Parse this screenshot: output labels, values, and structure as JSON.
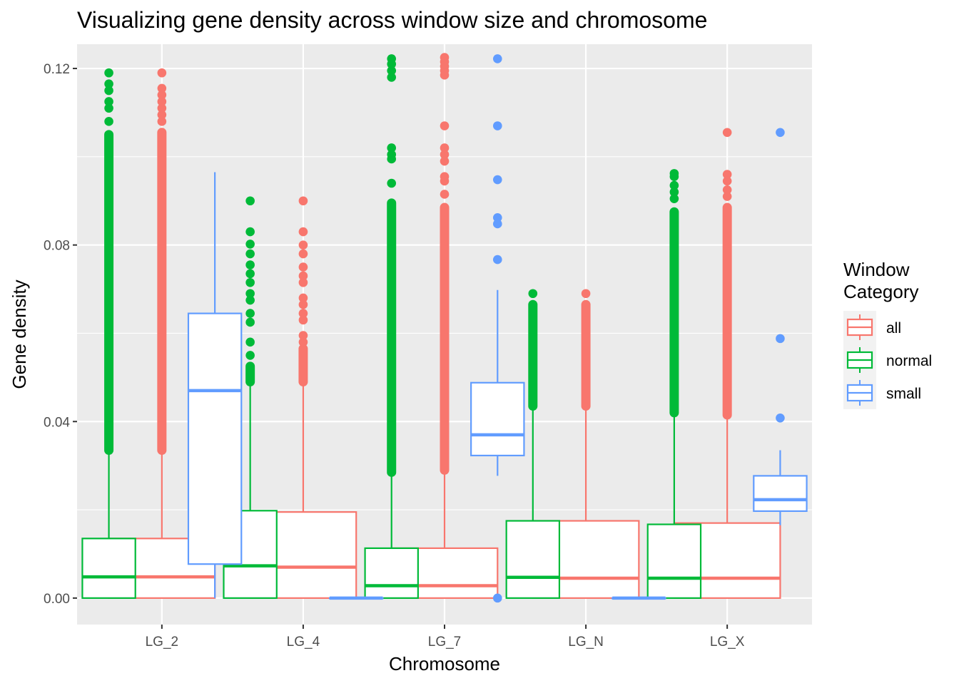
{
  "chart_data": {
    "type": "boxplot",
    "title": "Visualizing gene density across window size and chromosome",
    "xlabel": "Chromosome",
    "ylabel": "Gene density",
    "categories": [
      "LG_2",
      "LG_4",
      "LG_7",
      "LG_N",
      "LG_X"
    ],
    "ylim": [
      -0.006,
      0.1255
    ],
    "y_ticks": [
      {
        "value": 0.0,
        "label": "0.00"
      },
      {
        "value": 0.04,
        "label": "0.04"
      },
      {
        "value": 0.08,
        "label": "0.08"
      },
      {
        "value": 0.12,
        "label": "0.12"
      }
    ],
    "y_minor_ticks": [
      0.02,
      0.06,
      0.1
    ],
    "grid": true,
    "legend": {
      "title": "Window\nCategory",
      "title_lines": [
        "Window",
        "Category"
      ],
      "placement": "right",
      "entries": [
        {
          "name": "all",
          "color": "#F8766D"
        },
        {
          "name": "normal",
          "color": "#00BA38"
        },
        {
          "name": "small",
          "color": "#619CFF"
        }
      ]
    },
    "colors": {
      "all": "#F8766D",
      "normal": "#00BA38",
      "small": "#619CFF",
      "panel": "#EBEBEB",
      "grid": "#FFFFFF"
    },
    "series": [
      {
        "name": "all",
        "color": "#F8766D",
        "boxes": [
          {
            "category": "LG_2",
            "min": 0.0,
            "q1": 0.0,
            "median": 0.0048,
            "q3": 0.0135,
            "max": 0.0338,
            "outliers_range": [
              0.0335,
              0.1055
            ],
            "outliers": [
              0.108,
              0.1095,
              0.111,
              0.1125,
              0.114,
              0.1155,
              0.119
            ]
          },
          {
            "category": "LG_4",
            "min": 0.0,
            "q1": 0.0,
            "median": 0.007,
            "q3": 0.0195,
            "max": 0.0488,
            "outliers_range": [
              0.049,
              0.0565
            ],
            "outliers": [
              0.058,
              0.0595,
              0.063,
              0.0645,
              0.0665,
              0.068,
              0.0715,
              0.073,
              0.075,
              0.078,
              0.08,
              0.083,
              0.09
            ]
          },
          {
            "category": "LG_7",
            "min": 0.0,
            "q1": 0.0,
            "median": 0.0028,
            "q3": 0.0113,
            "max": 0.0285,
            "outliers_range": [
              0.029,
              0.0885
            ],
            "outliers": [
              0.0915,
              0.0945,
              0.0955,
              0.099,
              0.1005,
              0.102,
              0.107,
              0.1185,
              0.1195,
              0.1205,
              0.1215,
              0.1225
            ]
          },
          {
            "category": "LG_N",
            "min": 0.0,
            "q1": 0.0,
            "median": 0.0045,
            "q3": 0.0175,
            "max": 0.0435,
            "outliers_range": [
              0.0435,
              0.0665
            ],
            "outliers": [
              0.069
            ]
          },
          {
            "category": "LG_X",
            "min": 0.0,
            "q1": 0.0,
            "median": 0.0045,
            "q3": 0.017,
            "max": 0.0415,
            "outliers_range": [
              0.0415,
              0.0885
            ],
            "outliers": [
              0.091,
              0.0925,
              0.0945,
              0.096,
              0.1055
            ]
          }
        ]
      },
      {
        "name": "normal",
        "color": "#00BA38",
        "boxes": [
          {
            "category": "LG_2",
            "min": 0.0,
            "q1": 0.0,
            "median": 0.0048,
            "q3": 0.0135,
            "max": 0.0335,
            "outliers_range": [
              0.0335,
              0.105
            ],
            "outliers": [
              0.108,
              0.111,
              0.1125,
              0.115,
              0.1165,
              0.119
            ]
          },
          {
            "category": "LG_4",
            "min": 0.0,
            "q1": 0.0,
            "median": 0.0073,
            "q3": 0.0198,
            "max": 0.049,
            "outliers_range": [
              0.049,
              0.0525
            ],
            "outliers": [
              0.055,
              0.058,
              0.0625,
              0.0645,
              0.0675,
              0.069,
              0.0715,
              0.0735,
              0.0755,
              0.078,
              0.0802,
              0.083,
              0.09
            ]
          },
          {
            "category": "LG_7",
            "min": 0.0,
            "q1": 0.0,
            "median": 0.0028,
            "q3": 0.0113,
            "max": 0.0285,
            "outliers_range": [
              0.0285,
              0.0895
            ],
            "outliers": [
              0.094,
              0.0995,
              0.1005,
              0.102,
              0.118,
              0.1195,
              0.121,
              0.1222
            ]
          },
          {
            "category": "LG_N",
            "min": 0.0,
            "q1": 0.0,
            "median": 0.0047,
            "q3": 0.0175,
            "max": 0.0435,
            "outliers_range": [
              0.0435,
              0.0665
            ],
            "outliers": [
              0.069
            ]
          },
          {
            "category": "LG_X",
            "min": 0.0,
            "q1": 0.0,
            "median": 0.0045,
            "q3": 0.0167,
            "max": 0.042,
            "outliers_range": [
              0.042,
              0.0875
            ],
            "outliers": [
              0.0905,
              0.092,
              0.0935,
              0.0955,
              0.0962
            ]
          }
        ]
      },
      {
        "name": "small",
        "color": "#619CFF",
        "boxes": [
          {
            "category": "LG_2",
            "min": 0.0,
            "q1": 0.0077,
            "median": 0.047,
            "q3": 0.0645,
            "max": 0.0965,
            "outliers": []
          },
          {
            "category": "LG_4",
            "min": 0.0,
            "q1": 0.0,
            "median": 0.0,
            "q3": 0.0,
            "max": 0.0,
            "outliers": []
          },
          {
            "category": "LG_7",
            "min": 0.0277,
            "q1": 0.0323,
            "median": 0.037,
            "q3": 0.0488,
            "max": 0.0698,
            "outliers": [
              0.0,
              0.0767,
              0.0848,
              0.0862,
              0.0948,
              0.107,
              0.1222
            ]
          },
          {
            "category": "LG_N",
            "min": 0.0,
            "q1": 0.0,
            "median": 0.0,
            "q3": 0.0,
            "max": 0.0,
            "outliers": []
          },
          {
            "category": "LG_X",
            "min": 0.0165,
            "q1": 0.0197,
            "median": 0.0223,
            "q3": 0.0277,
            "max": 0.0335,
            "outliers": [
              0.0408,
              0.0588,
              0.1055
            ]
          }
        ]
      }
    ]
  }
}
